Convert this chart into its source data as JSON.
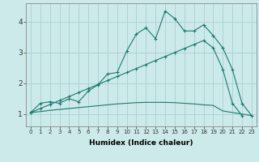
{
  "xlabel": "Humidex (Indice chaleur)",
  "x_values": [
    0,
    1,
    2,
    3,
    4,
    5,
    6,
    7,
    8,
    9,
    10,
    11,
    12,
    13,
    14,
    15,
    16,
    17,
    18,
    19,
    20,
    21,
    22,
    23
  ],
  "line1": [
    1.05,
    1.35,
    1.4,
    1.35,
    1.5,
    1.4,
    1.75,
    1.95,
    2.3,
    2.35,
    3.05,
    3.6,
    3.8,
    3.45,
    4.35,
    4.1,
    3.7,
    3.7,
    3.9,
    3.55,
    3.15,
    2.45,
    1.35,
    0.95
  ],
  "line2": [
    1.05,
    1.18,
    1.31,
    1.44,
    1.57,
    1.7,
    1.83,
    1.96,
    2.09,
    2.22,
    2.35,
    2.48,
    2.61,
    2.74,
    2.87,
    3.0,
    3.13,
    3.26,
    3.39,
    3.15,
    2.45,
    1.35,
    0.95,
    null
  ],
  "line2_x": [
    0,
    1,
    2,
    3,
    4,
    5,
    6,
    7,
    8,
    9,
    10,
    11,
    12,
    13,
    14,
    15,
    16,
    17,
    18,
    19,
    20,
    21,
    22
  ],
  "line2_y": [
    1.05,
    1.18,
    1.31,
    1.44,
    1.57,
    1.7,
    1.83,
    1.96,
    2.09,
    2.22,
    2.35,
    2.48,
    2.61,
    2.74,
    2.87,
    3.0,
    3.13,
    3.26,
    3.39,
    3.15,
    2.45,
    1.35,
    0.95
  ],
  "line3_x": [
    0,
    1,
    2,
    3,
    4,
    5,
    6,
    7,
    8,
    9,
    10,
    11,
    12,
    13,
    14,
    15,
    16,
    17,
    18,
    19,
    20,
    21,
    22,
    23
  ],
  "line3_y": [
    1.05,
    1.08,
    1.12,
    1.15,
    1.18,
    1.21,
    1.24,
    1.27,
    1.3,
    1.33,
    1.35,
    1.37,
    1.38,
    1.38,
    1.38,
    1.37,
    1.35,
    1.33,
    1.3,
    1.28,
    1.1,
    1.05,
    1.0,
    0.95
  ],
  "bg_color": "#cceaea",
  "line_color": "#1a7a6e",
  "grid_color": "#aacfcf",
  "ylim": [
    0.6,
    4.6
  ],
  "yticks": [
    1,
    2,
    3,
    4
  ],
  "xlim": [
    -0.5,
    23.5
  ]
}
